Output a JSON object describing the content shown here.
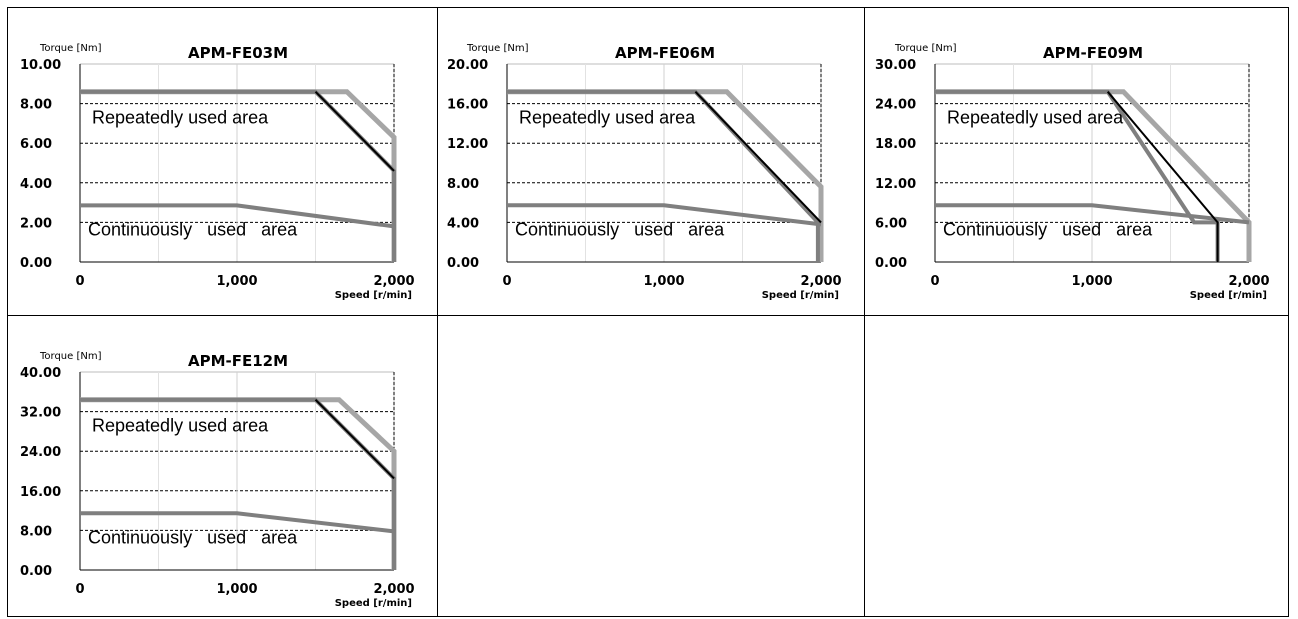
{
  "chart_data": [
    {
      "type": "line",
      "title": "APM-FE03M",
      "ylabel": "Torque [Nm]",
      "xlabel": "Speed [r/min]",
      "xlim": [
        0,
        2000
      ],
      "ylim": [
        0,
        10
      ],
      "yticks": [
        "0.00",
        "2.00",
        "4.00",
        "6.00",
        "8.00",
        "10.00"
      ],
      "xticks": [
        "0",
        "1,000",
        "2,000"
      ],
      "repeated_label": "Repeatedly used area",
      "continuous_label": "Continuously used area",
      "series": [
        {
          "role": "repeated-light",
          "color": "#a6a6a6",
          "x": [
            0,
            1700,
            2000,
            2000
          ],
          "y": [
            8.6,
            8.6,
            6.3,
            0
          ]
        },
        {
          "role": "repeated-dark",
          "color": "#7f7f7f",
          "x": [
            0,
            1500,
            2000,
            2000
          ],
          "y": [
            8.6,
            8.6,
            4.6,
            0
          ]
        },
        {
          "role": "voltage-limit",
          "color": "#000000",
          "x": [
            1500,
            2000
          ],
          "y": [
            8.6,
            4.6
          ]
        },
        {
          "role": "continuous",
          "color": "#7f7f7f",
          "x": [
            0,
            1000,
            2000
          ],
          "y": [
            2.86,
            2.86,
            1.8
          ]
        }
      ]
    },
    {
      "type": "line",
      "title": "APM-FE06M",
      "ylabel": "Torque [Nm]",
      "xlabel": "Speed [r/min]",
      "xlim": [
        0,
        2000
      ],
      "ylim": [
        0,
        20
      ],
      "yticks": [
        "0.00",
        "4.00",
        "8.00",
        "12.00",
        "16.00",
        "20.00"
      ],
      "xticks": [
        "0",
        "1,000",
        "2,000"
      ],
      "repeated_label": "Repeatedly used area",
      "continuous_label": "Continuously used area",
      "series": [
        {
          "role": "repeated-light",
          "color": "#a6a6a6",
          "x": [
            0,
            1400,
            2000,
            2000
          ],
          "y": [
            17.2,
            17.2,
            7.6,
            0
          ]
        },
        {
          "role": "repeated-dark",
          "color": "#7f7f7f",
          "x": [
            0,
            1200,
            1980,
            1980
          ],
          "y": [
            17.2,
            17.2,
            4.0,
            0
          ]
        },
        {
          "role": "voltage-limit",
          "color": "#000000",
          "x": [
            1200,
            2000
          ],
          "y": [
            17.2,
            4.0
          ]
        },
        {
          "role": "continuous",
          "color": "#7f7f7f",
          "x": [
            0,
            1000,
            2000
          ],
          "y": [
            5.73,
            5.73,
            3.8
          ]
        }
      ]
    },
    {
      "type": "line",
      "title": "APM-FE09M",
      "ylabel": "Torque [Nm]",
      "xlabel": "Speed [r/min]",
      "xlim": [
        0,
        2000
      ],
      "ylim": [
        0,
        30
      ],
      "yticks": [
        "0.00",
        "6.00",
        "12.00",
        "18.00",
        "24.00",
        "30.00"
      ],
      "xticks": [
        "0",
        "1,000",
        "2,000"
      ],
      "repeated_label": "Repeatedly used area",
      "continuous_label": "Continuously used area",
      "series": [
        {
          "role": "repeated-light",
          "color": "#a6a6a6",
          "x": [
            0,
            1200,
            2000,
            2000
          ],
          "y": [
            25.8,
            25.8,
            6.0,
            0
          ]
        },
        {
          "role": "repeated-dark",
          "color": "#7f7f7f",
          "x": [
            0,
            1100,
            1650,
            1800,
            1800
          ],
          "y": [
            25.8,
            25.8,
            6.0,
            6.0,
            0
          ]
        },
        {
          "role": "voltage-limit",
          "color": "#000000",
          "x": [
            1100,
            1800,
            1800
          ],
          "y": [
            25.8,
            6.0,
            0
          ]
        },
        {
          "role": "continuous",
          "color": "#7f7f7f",
          "x": [
            0,
            1000,
            2000
          ],
          "y": [
            8.59,
            8.59,
            6.0
          ]
        }
      ]
    },
    {
      "type": "line",
      "title": "APM-FE12M",
      "ylabel": "Torque [Nm]",
      "xlabel": "Speed [r/min]",
      "xlim": [
        0,
        2000
      ],
      "ylim": [
        0,
        40
      ],
      "yticks": [
        "0.00",
        "8.00",
        "16.00",
        "24.00",
        "32.00",
        "40.00"
      ],
      "xticks": [
        "0",
        "1,000",
        "2,000"
      ],
      "repeated_label": "Repeatedly used area",
      "continuous_label": "Continuously used area",
      "series": [
        {
          "role": "repeated-light",
          "color": "#a6a6a6",
          "x": [
            0,
            1650,
            2000,
            2000
          ],
          "y": [
            34.4,
            34.4,
            24.0,
            0
          ]
        },
        {
          "role": "repeated-dark",
          "color": "#7f7f7f",
          "x": [
            0,
            1500,
            2000,
            2000
          ],
          "y": [
            34.4,
            34.4,
            18.5,
            0
          ]
        },
        {
          "role": "voltage-limit",
          "color": "#000000",
          "x": [
            1500,
            2000
          ],
          "y": [
            34.4,
            18.5
          ]
        },
        {
          "role": "continuous",
          "color": "#7f7f7f",
          "x": [
            0,
            1000,
            2000
          ],
          "y": [
            11.46,
            11.46,
            7.8
          ]
        }
      ]
    }
  ]
}
